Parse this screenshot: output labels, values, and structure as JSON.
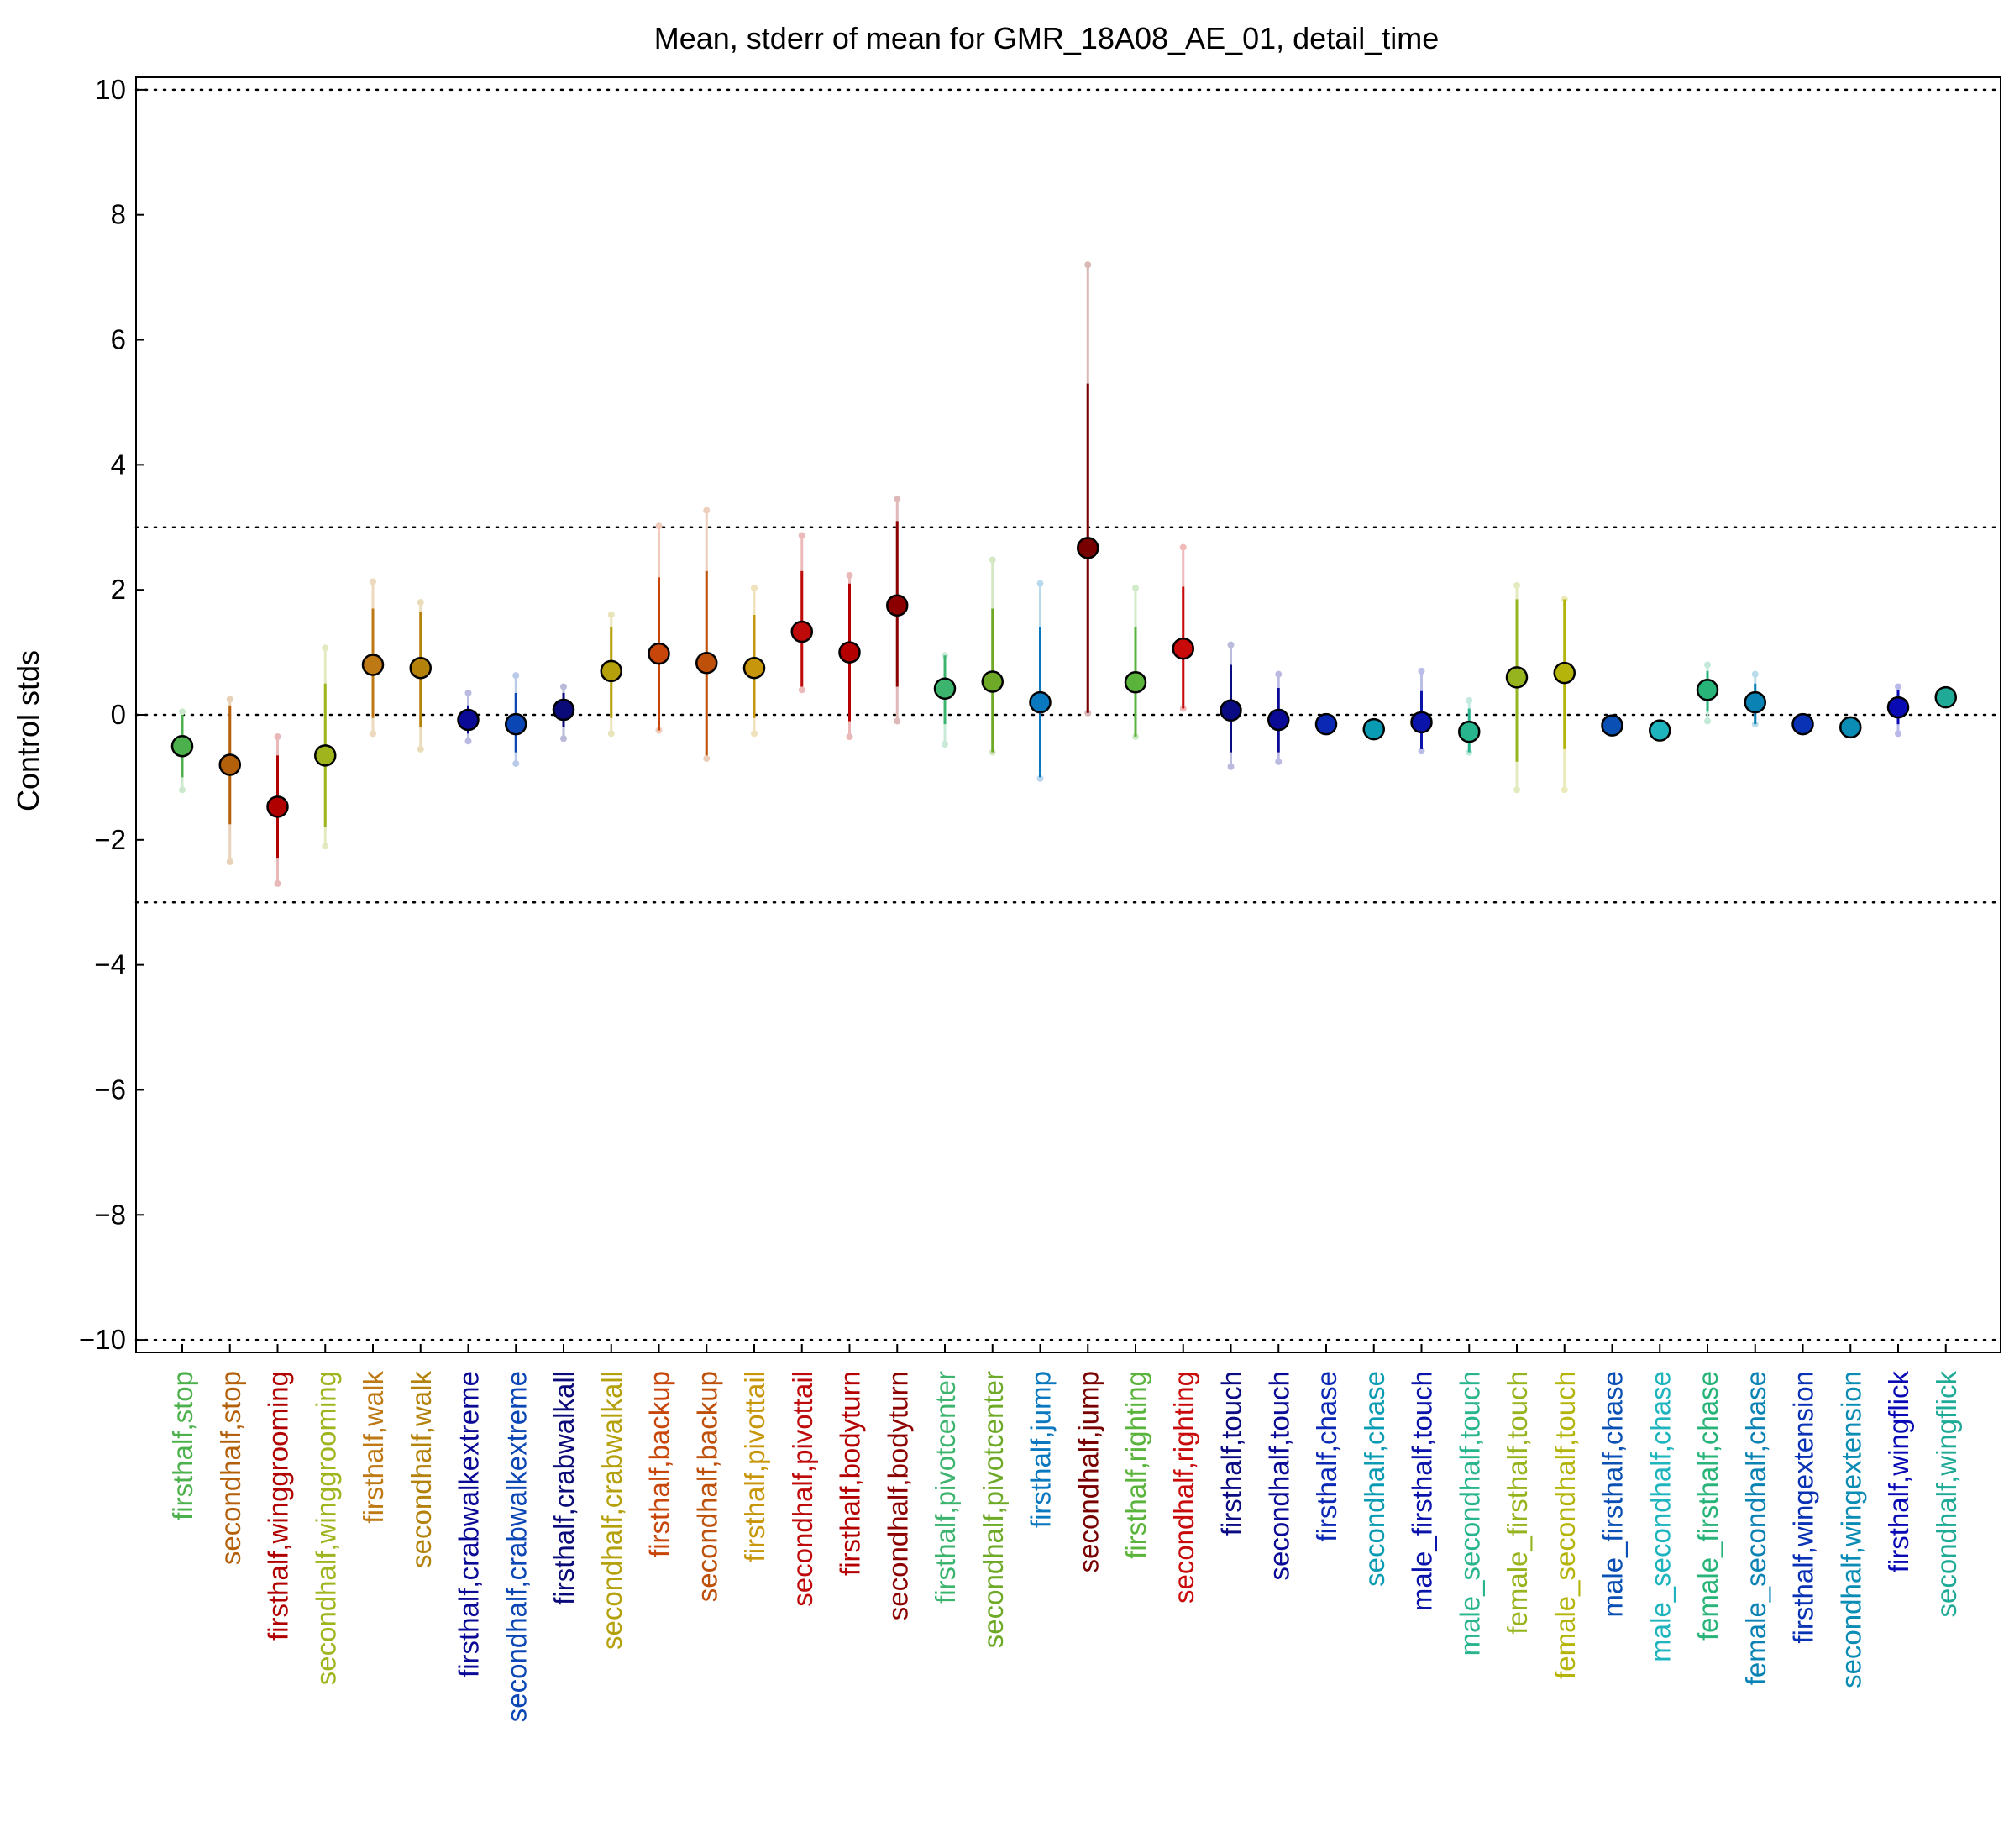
{
  "chart_data": {
    "type": "scatter",
    "title": "Mean, stderr of mean for GMR_18A08_AE_01, detail_time",
    "xlabel": "",
    "ylabel": "Control stds",
    "ylim": [
      -10.2,
      10.2
    ],
    "yticks": [
      -10,
      -8,
      -6,
      -4,
      -2,
      0,
      2,
      4,
      6,
      8,
      10
    ],
    "ytick_labels": [
      "−10",
      "−8",
      "−6",
      "−4",
      "−2",
      "0",
      "2",
      "4",
      "6",
      "8",
      "10"
    ],
    "reference_lines": [
      -10,
      -3,
      0,
      3,
      10
    ],
    "grid": false,
    "points": [
      {
        "label": "firsthalf,stop",
        "color": "#4cb14c",
        "mean": -0.5,
        "err_lo": -1.0,
        "err_hi": 0.0,
        "ext_lo": -1.2,
        "ext_hi": 0.05
      },
      {
        "label": "secondhalf,stop",
        "color": "#b45f0a",
        "mean": -0.8,
        "err_lo": -1.75,
        "err_hi": 0.15,
        "ext_lo": -2.35,
        "ext_hi": 0.25
      },
      {
        "label": "firsthalf,winggrooming",
        "color": "#b00000",
        "mean": -1.47,
        "err_lo": -2.3,
        "err_hi": -0.65,
        "ext_lo": -2.7,
        "ext_hi": -0.35
      },
      {
        "label": "secondhalf,winggrooming",
        "color": "#a0b41e",
        "mean": -0.65,
        "err_lo": -1.8,
        "err_hi": 0.5,
        "ext_lo": -2.1,
        "ext_hi": 1.07
      },
      {
        "label": "firsthalf,walk",
        "color": "#be7814",
        "mean": 0.8,
        "err_lo": -0.05,
        "err_hi": 1.7,
        "ext_lo": -0.3,
        "ext_hi": 2.13
      },
      {
        "label": "secondhalf,walk",
        "color": "#b4820a",
        "mean": 0.75,
        "err_lo": -0.2,
        "err_hi": 1.65,
        "ext_lo": -0.55,
        "ext_hi": 1.8
      },
      {
        "label": "firsthalf,crabwalkextreme",
        "color": "#0a0a96",
        "mean": -0.08,
        "err_lo": -0.3,
        "err_hi": 0.15,
        "ext_lo": -0.42,
        "ext_hi": 0.35
      },
      {
        "label": "secondhalf,crabwalkextreme",
        "color": "#0a46b4",
        "mean": -0.15,
        "err_lo": -0.6,
        "err_hi": 0.35,
        "ext_lo": -0.78,
        "ext_hi": 0.63
      },
      {
        "label": "firsthalf,crabwalkall",
        "color": "#0a0a78",
        "mean": 0.08,
        "err_lo": -0.2,
        "err_hi": 0.35,
        "ext_lo": -0.38,
        "ext_hi": 0.45
      },
      {
        "label": "secondhalf,crabwalkall",
        "color": "#b4a00a",
        "mean": 0.7,
        "err_lo": -0.05,
        "err_hi": 1.4,
        "ext_lo": -0.3,
        "ext_hi": 1.6
      },
      {
        "label": "firsthalf,backup",
        "color": "#c8460a",
        "mean": 0.98,
        "err_lo": -0.25,
        "err_hi": 2.2,
        "ext_lo": -0.25,
        "ext_hi": 3.02
      },
      {
        "label": "secondhalf,backup",
        "color": "#be500a",
        "mean": 0.83,
        "err_lo": -0.65,
        "err_hi": 2.3,
        "ext_lo": -0.7,
        "ext_hi": 3.27
      },
      {
        "label": "firsthalf,pivottail",
        "color": "#c8960a",
        "mean": 0.75,
        "err_lo": -0.05,
        "err_hi": 1.6,
        "ext_lo": -0.3,
        "ext_hi": 2.03
      },
      {
        "label": "secondhalf,pivottail",
        "color": "#be0a0a",
        "mean": 1.33,
        "err_lo": 0.45,
        "err_hi": 2.3,
        "ext_lo": 0.4,
        "ext_hi": 2.87
      },
      {
        "label": "firsthalf,bodyturn",
        "color": "#b40000",
        "mean": 1.0,
        "err_lo": -0.1,
        "err_hi": 2.1,
        "ext_lo": -0.35,
        "ext_hi": 2.23
      },
      {
        "label": "secondhalf,bodyturn",
        "color": "#8c0000",
        "mean": 1.75,
        "err_lo": 0.45,
        "err_hi": 3.1,
        "ext_lo": -0.1,
        "ext_hi": 3.45
      },
      {
        "label": "firsthalf,pivotcenter",
        "color": "#3cb46e",
        "mean": 0.42,
        "err_lo": -0.15,
        "err_hi": 0.95,
        "ext_lo": -0.47,
        "ext_hi": 0.95
      },
      {
        "label": "secondhalf,pivotcenter",
        "color": "#6eaa28",
        "mean": 0.53,
        "err_lo": -0.6,
        "err_hi": 1.7,
        "ext_lo": -0.6,
        "ext_hi": 2.48
      },
      {
        "label": "firsthalf,jump",
        "color": "#0a78be",
        "mean": 0.2,
        "err_lo": -1.0,
        "err_hi": 1.4,
        "ext_lo": -1.02,
        "ext_hi": 2.1
      },
      {
        "label": "secondhalf,jump",
        "color": "#780000",
        "mean": 2.67,
        "err_lo": 0.03,
        "err_hi": 5.3,
        "ext_lo": 0.03,
        "ext_hi": 7.2
      },
      {
        "label": "firsthalf,righting",
        "color": "#5ab43c",
        "mean": 0.52,
        "err_lo": -0.35,
        "err_hi": 1.4,
        "ext_lo": -0.35,
        "ext_hi": 2.03
      },
      {
        "label": "secondhalf,righting",
        "color": "#c80a0a",
        "mean": 1.06,
        "err_lo": 0.1,
        "err_hi": 2.05,
        "ext_lo": 0.1,
        "ext_hi": 2.68
      },
      {
        "label": "firsthalf,touch",
        "color": "#0a0a82",
        "mean": 0.07,
        "err_lo": -0.6,
        "err_hi": 0.8,
        "ext_lo": -0.83,
        "ext_hi": 1.12
      },
      {
        "label": "secondhalf,touch",
        "color": "#0a0a96",
        "mean": -0.08,
        "err_lo": -0.6,
        "err_hi": 0.43,
        "ext_lo": -0.75,
        "ext_hi": 0.65
      },
      {
        "label": "firsthalf,chase",
        "color": "#0a28b4",
        "mean": -0.15,
        "err_lo": -0.15,
        "err_hi": -0.15,
        "ext_lo": -0.15,
        "ext_hi": -0.15
      },
      {
        "label": "secondhalf,chase",
        "color": "#0a9bb4",
        "mean": -0.23,
        "err_lo": -0.23,
        "err_hi": -0.23,
        "ext_lo": -0.23,
        "ext_hi": -0.23
      },
      {
        "label": "male_firsthalf,touch",
        "color": "#0a14aa",
        "mean": -0.12,
        "err_lo": -0.55,
        "err_hi": 0.38,
        "ext_lo": -0.58,
        "ext_hi": 0.7
      },
      {
        "label": "male_secondhalf,touch",
        "color": "#28b48c",
        "mean": -0.27,
        "err_lo": -0.6,
        "err_hi": 0.1,
        "ext_lo": -0.6,
        "ext_hi": 0.23
      },
      {
        "label": "female_firsthalf,touch",
        "color": "#96b41e",
        "mean": 0.6,
        "err_lo": -0.75,
        "err_hi": 1.85,
        "ext_lo": -1.2,
        "ext_hi": 2.07
      },
      {
        "label": "female_secondhalf,touch",
        "color": "#b4b40a",
        "mean": 0.67,
        "err_lo": -0.55,
        "err_hi": 1.85,
        "ext_lo": -1.2,
        "ext_hi": 1.85
      },
      {
        "label": "male_firsthalf,chase",
        "color": "#0a50b4",
        "mean": -0.17,
        "err_lo": -0.17,
        "err_hi": -0.17,
        "ext_lo": -0.17,
        "ext_hi": -0.17
      },
      {
        "label": "male_secondhalf,chase",
        "color": "#1eb4be",
        "mean": -0.25,
        "err_lo": -0.25,
        "err_hi": -0.25,
        "ext_lo": -0.25,
        "ext_hi": -0.25
      },
      {
        "label": "female_firsthalf,chase",
        "color": "#28b478",
        "mean": 0.4,
        "err_lo": 0.05,
        "err_hi": 0.7,
        "ext_lo": -0.1,
        "ext_hi": 0.8
      },
      {
        "label": "female_secondhalf,chase",
        "color": "#0a82b4",
        "mean": 0.2,
        "err_lo": -0.15,
        "err_hi": 0.5,
        "ext_lo": -0.15,
        "ext_hi": 0.65
      },
      {
        "label": "firsthalf,wingextension",
        "color": "#0a32b4",
        "mean": -0.15,
        "err_lo": -0.15,
        "err_hi": -0.15,
        "ext_lo": -0.15,
        "ext_hi": -0.15
      },
      {
        "label": "secondhalf,wingextension",
        "color": "#0a8cb4",
        "mean": -0.2,
        "err_lo": -0.2,
        "err_hi": -0.2,
        "ext_lo": -0.2,
        "ext_hi": -0.2
      },
      {
        "label": "firsthalf,wingflick",
        "color": "#0a0ab4",
        "mean": 0.12,
        "err_lo": -0.15,
        "err_hi": 0.4,
        "ext_lo": -0.3,
        "ext_hi": 0.45
      },
      {
        "label": "secondhalf,wingflick",
        "color": "#1eaa96",
        "mean": 0.28,
        "err_lo": 0.28,
        "err_hi": 0.28,
        "ext_lo": 0.28,
        "ext_hi": 0.28
      }
    ]
  }
}
